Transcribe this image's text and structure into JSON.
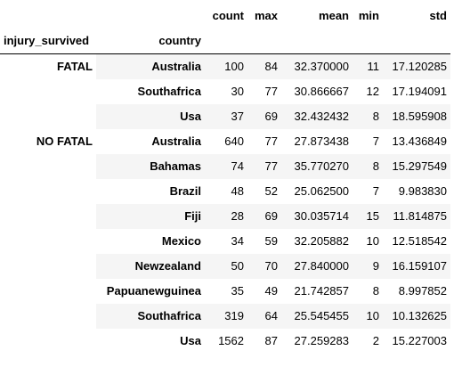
{
  "columns": [
    "count",
    "max",
    "mean",
    "min",
    "std"
  ],
  "index_names": [
    "injury_survived",
    "country"
  ],
  "groups": [
    {
      "label": "FATAL",
      "rows": [
        {
          "country": "Australia",
          "count": "100",
          "max": "84",
          "mean": "32.370000",
          "min": "11",
          "std": "17.120285"
        },
        {
          "country": "Southafrica",
          "count": "30",
          "max": "77",
          "mean": "30.866667",
          "min": "12",
          "std": "17.194091"
        },
        {
          "country": "Usa",
          "count": "37",
          "max": "69",
          "mean": "32.432432",
          "min": "8",
          "std": "18.595908"
        }
      ]
    },
    {
      "label": "NO FATAL",
      "rows": [
        {
          "country": "Australia",
          "count": "640",
          "max": "77",
          "mean": "27.873438",
          "min": "7",
          "std": "13.436849"
        },
        {
          "country": "Bahamas",
          "count": "74",
          "max": "77",
          "mean": "35.770270",
          "min": "8",
          "std": "15.297549"
        },
        {
          "country": "Brazil",
          "count": "48",
          "max": "52",
          "mean": "25.062500",
          "min": "7",
          "std": "9.983830"
        },
        {
          "country": "Fiji",
          "count": "28",
          "max": "69",
          "mean": "30.035714",
          "min": "15",
          "std": "11.814875"
        },
        {
          "country": "Mexico",
          "count": "34",
          "max": "59",
          "mean": "32.205882",
          "min": "10",
          "std": "12.518542"
        },
        {
          "country": "Newzealand",
          "count": "50",
          "max": "70",
          "mean": "27.840000",
          "min": "9",
          "std": "16.159107"
        },
        {
          "country": "Papuanewguinea",
          "count": "35",
          "max": "49",
          "mean": "21.742857",
          "min": "8",
          "std": "8.997852"
        },
        {
          "country": "Southafrica",
          "count": "319",
          "max": "64",
          "mean": "25.545455",
          "min": "10",
          "std": "10.132625"
        },
        {
          "country": "Usa",
          "count": "1562",
          "max": "87",
          "mean": "27.259283",
          "min": "2",
          "std": "15.227003"
        }
      ]
    }
  ]
}
